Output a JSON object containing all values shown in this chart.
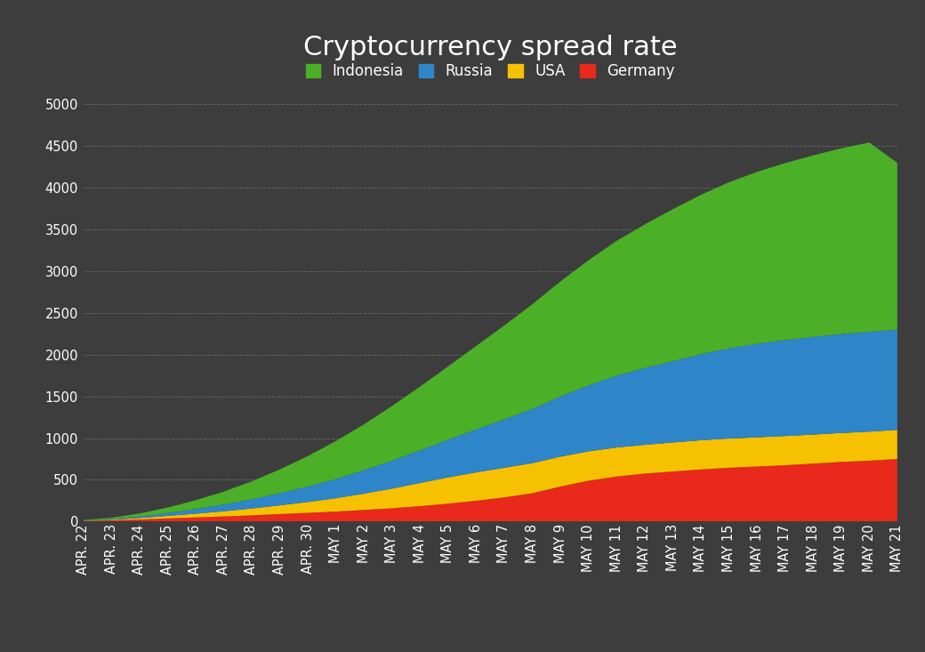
{
  "title": "Cryptocurrency spread rate",
  "background_color": "#3d3d3d",
  "text_color": "#ffffff",
  "grid_color": "#666666",
  "categories": [
    "APR. 22",
    "APR. 23",
    "APR. 24",
    "APR. 25",
    "APR. 26",
    "APR. 27",
    "APR. 28",
    "APR. 29",
    "APR. 30",
    "MAY 1",
    "MAY 2",
    "MAY 3",
    "MAY 4",
    "MAY 5",
    "MAY 6",
    "MAY 7",
    "MAY 8",
    "MAY 9",
    "MAY 10",
    "MAY 11",
    "MAY 12",
    "MAY 13",
    "MAY 14",
    "MAY 15",
    "MAY 16",
    "MAY 17",
    "MAY 18",
    "MAY 19",
    "MAY 20",
    "MAY 21"
  ],
  "series": {
    "Germany": {
      "color": "#e8291c",
      "values": [
        8,
        15,
        25,
        38,
        50,
        62,
        75,
        90,
        105,
        120,
        140,
        160,
        185,
        215,
        250,
        290,
        340,
        420,
        490,
        540,
        575,
        600,
        625,
        645,
        660,
        675,
        695,
        715,
        730,
        750
      ]
    },
    "USA": {
      "color": "#f5c100",
      "values": [
        3,
        8,
        18,
        30,
        45,
        62,
        82,
        105,
        130,
        160,
        195,
        235,
        278,
        315,
        340,
        355,
        360,
        358,
        352,
        348,
        345,
        348,
        350,
        350,
        350,
        350,
        348,
        347,
        348,
        350
      ]
    },
    "Russia": {
      "color": "#2e86c9",
      "values": [
        3,
        8,
        18,
        35,
        55,
        80,
        110,
        145,
        185,
        230,
        280,
        335,
        390,
        450,
        515,
        580,
        650,
        720,
        790,
        860,
        920,
        975,
        1030,
        1080,
        1120,
        1150,
        1170,
        1185,
        1195,
        1200
      ]
    },
    "Indonesia": {
      "color": "#4caf28",
      "values": [
        5,
        15,
        35,
        65,
        105,
        155,
        215,
        285,
        365,
        455,
        550,
        655,
        765,
        880,
        1000,
        1125,
        1255,
        1380,
        1500,
        1615,
        1720,
        1820,
        1910,
        1990,
        2060,
        2120,
        2175,
        2225,
        2270,
        2000
      ]
    }
  },
  "ylim": [
    0,
    5000
  ],
  "yticks": [
    0,
    500,
    1000,
    1500,
    2000,
    2500,
    3000,
    3500,
    4000,
    4500,
    5000
  ],
  "legend_order": [
    "Indonesia",
    "Russia",
    "USA",
    "Germany"
  ],
  "title_fontsize": 22,
  "tick_fontsize": 10.5,
  "legend_fontsize": 12
}
